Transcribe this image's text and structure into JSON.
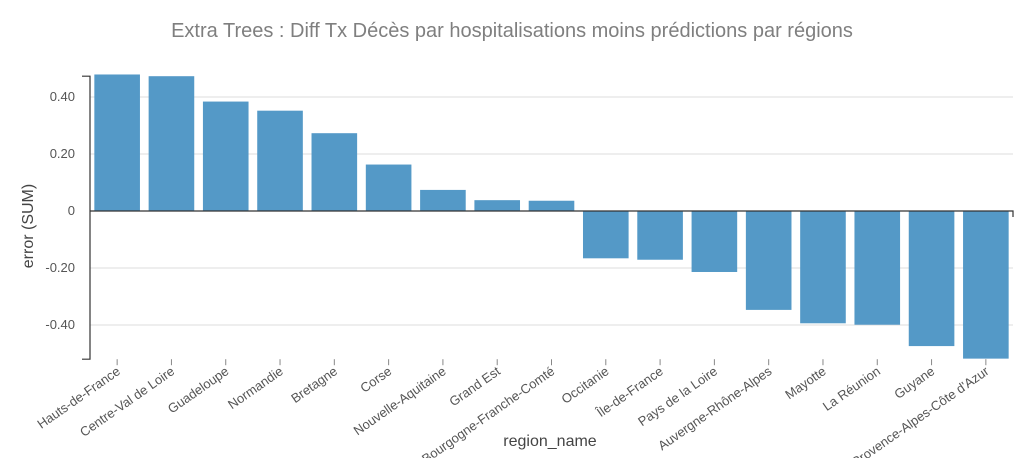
{
  "chart_data": {
    "type": "bar",
    "title": "Extra Trees : Diff Tx Décès par hospitalisations moins prédictions par régions",
    "xlabel": "region_name",
    "ylabel": "error (SUM)",
    "categories": [
      "Hauts-de-France",
      "Centre-Val de Loire",
      "Guadeloupe",
      "Normandie",
      "Bretagne",
      "Corse",
      "Nouvelle-Aquitaine",
      "Grand Est",
      "Bourgogne-Franche-Comté",
      "Occitanie",
      "Île-de-France",
      "Pays de la Loire",
      "Auvergne-Rhône-Alpes",
      "Mayotte",
      "La Réunion",
      "Guyane",
      "Provence-Alpes-Côte d'Azur"
    ],
    "values": [
      0.479,
      0.473,
      0.384,
      0.352,
      0.273,
      0.163,
      0.074,
      0.038,
      0.036,
      -0.166,
      -0.171,
      -0.214,
      -0.347,
      -0.394,
      -0.399,
      -0.474,
      -0.518
    ],
    "yticks": [
      "0.40",
      "0.20",
      "0",
      "-0.20",
      "-0.40"
    ],
    "ytick_values": [
      0.4,
      0.2,
      0,
      -0.2,
      -0.4
    ],
    "ylim": [
      -0.52,
      0.48
    ],
    "grid": true,
    "bar_color": "#5499c7"
  }
}
